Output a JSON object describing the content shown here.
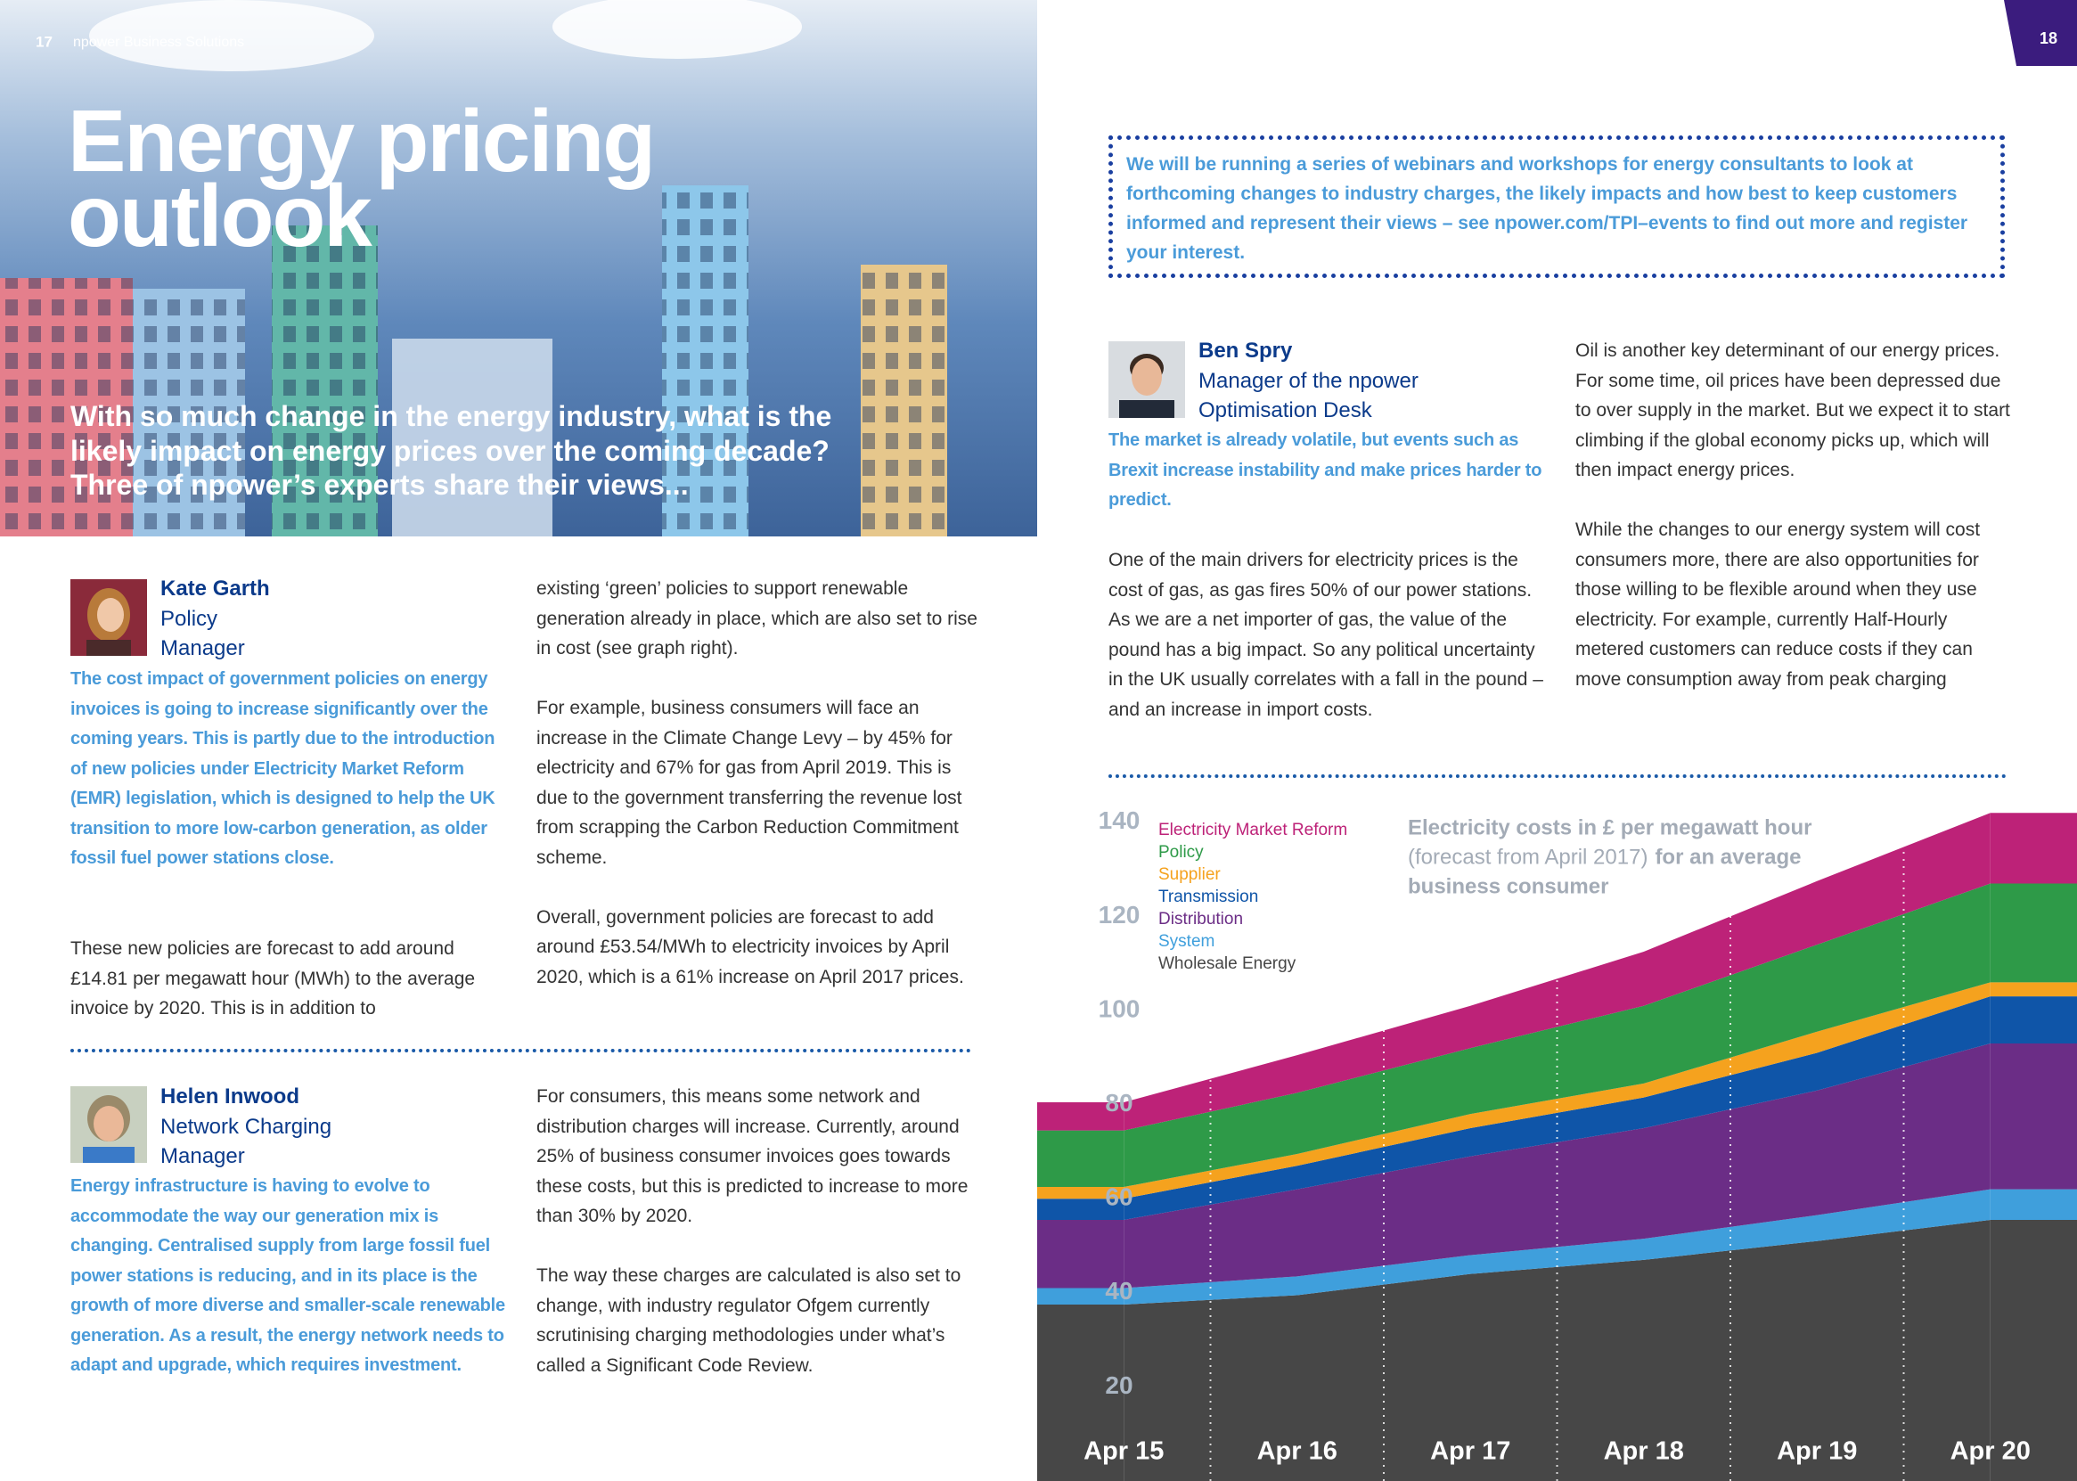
{
  "header": {
    "page_left": "17",
    "publication": "npower Business Solutions",
    "page_right": "18"
  },
  "hero": {
    "title_lines": [
      "Energy pricing",
      "outlook"
    ],
    "intro": "With so much change in the energy industry, what is the likely impact on energy prices over the coming decade? Three of npower’s experts share their views..."
  },
  "callout": "We will be running a series of webinars and workshops for energy consultants to look at forthcoming changes to industry charges, the likely impacts and how best to keep customers informed and represent their views – see npower.com/TPI–events to find out more and register your interest.",
  "experts": [
    {
      "name": "Kate Garth",
      "role_lines": [
        "Policy",
        "Manager"
      ],
      "lead": "The cost impact of government policies on energy invoices is going to increase significantly over the coming years. This is partly due to the introduction of new policies under Electricity Market Reform (EMR) legislation, which is designed to help the UK transition to more low-carbon generation, as older fossil fuel power stations close.",
      "first_column": [
        "These new policies are forecast to add around £14.81 per megawatt hour (MWh) to the average invoice by 2020. This is in addition to"
      ],
      "second_column": [
        "existing ‘green’ policies to support renewable generation already in place, which are also set to rise in cost (see graph right).",
        "For example, business consumers will face an increase in the Climate Change Levy – by 45% for electricity and 67% for gas from April 2019. This is due to the government transferring the revenue lost from scrapping the Carbon Reduction Commitment scheme.",
        "Overall, government policies are forecast to add around £53.54/MWh to electricity invoices by April 2020, which is a 61% increase on April 2017 prices."
      ]
    },
    {
      "name": "Helen Inwood",
      "role_lines": [
        "Network Charging",
        "Manager"
      ],
      "lead": "Energy infrastructure is having to evolve to accommodate the way our generation mix is changing. Centralised supply from large fossil fuel power stations is reducing, and in its place is the growth of more diverse and smaller-scale renewable generation. As a result, the energy network needs to adapt and upgrade, which requires investment.",
      "second_column": [
        "For consumers, this means some network and distribution charges will increase. Currently, around 25% of business consumer invoices goes towards these costs, but this is predicted to increase to more than 30% by 2020.",
        "The way these charges are calculated is also set to change, with industry regulator Ofgem currently scrutinising charging methodologies under what’s called a Significant Code Review."
      ]
    },
    {
      "name": "Ben Spry",
      "role_lines": [
        "Manager of the npower",
        "Optimisation Desk"
      ],
      "lead": "The market is already volatile, but events such as Brexit increase instability and make prices harder to predict.",
      "first_column": [
        "One of the main drivers for electricity prices is the cost of gas, as gas fires 50% of our power stations. As we are a net importer of gas, the value of the pound has a big impact. So any political uncertainty in the UK usually correlates with a fall in the pound – and an increase in import costs."
      ],
      "second_column": [
        "Oil is another key determinant of our energy prices. For some time, oil prices have been depressed due to over supply in the market. But we expect it to start climbing if the global economy picks up, which will then impact energy prices.",
        "While the changes to our energy system will cost consumers more, there are also opportunities for those willing to be flexible around when they use electricity. For example, currently Half-Hourly metered customers can reduce costs if they can move consumption away from peak charging"
      ]
    }
  ],
  "chart_data": {
    "type": "area",
    "title": "Electricity costs in £ per megawatt hour",
    "subtitle": "(forecast from April 2017)",
    "title_suffix_lines": [
      "for an average",
      "business consumer"
    ],
    "categories": [
      "Apr 15",
      "Apr 16",
      "Apr 17",
      "Apr 18",
      "Apr 19",
      "Apr 20"
    ],
    "series": [
      {
        "name": "Wholesale Energy",
        "color": "#474747",
        "values": [
          37.5,
          39.5,
          44,
          47,
          51,
          55.5
        ]
      },
      {
        "name": "System",
        "color": "#3f9fdc",
        "values": [
          3.5,
          4,
          4,
          4.5,
          5.5,
          6.5
        ]
      },
      {
        "name": "Distribution",
        "color": "#6b2d86",
        "values": [
          14.5,
          18.5,
          21,
          23.5,
          26.5,
          31
        ]
      },
      {
        "name": "Transmission",
        "color": "#0f55a8",
        "values": [
          4.5,
          5,
          6,
          6.5,
          8,
          10
        ]
      },
      {
        "name": "Supplier",
        "color": "#f5a21e",
        "values": [
          2.5,
          2.5,
          3,
          3,
          4.5,
          3
        ]
      },
      {
        "name": "Policy",
        "color": "#2e9a48",
        "values": [
          12,
          13,
          14,
          16.5,
          18.5,
          21
        ]
      },
      {
        "name": "Electricity Market Reform",
        "color": "#bd2278",
        "values": [
          6,
          8,
          9,
          11.5,
          13.5,
          15
        ]
      }
    ],
    "ylim": [
      0,
      150
    ],
    "yticks": [
      20,
      40,
      60,
      80,
      100,
      120,
      140
    ],
    "stacked": true
  }
}
